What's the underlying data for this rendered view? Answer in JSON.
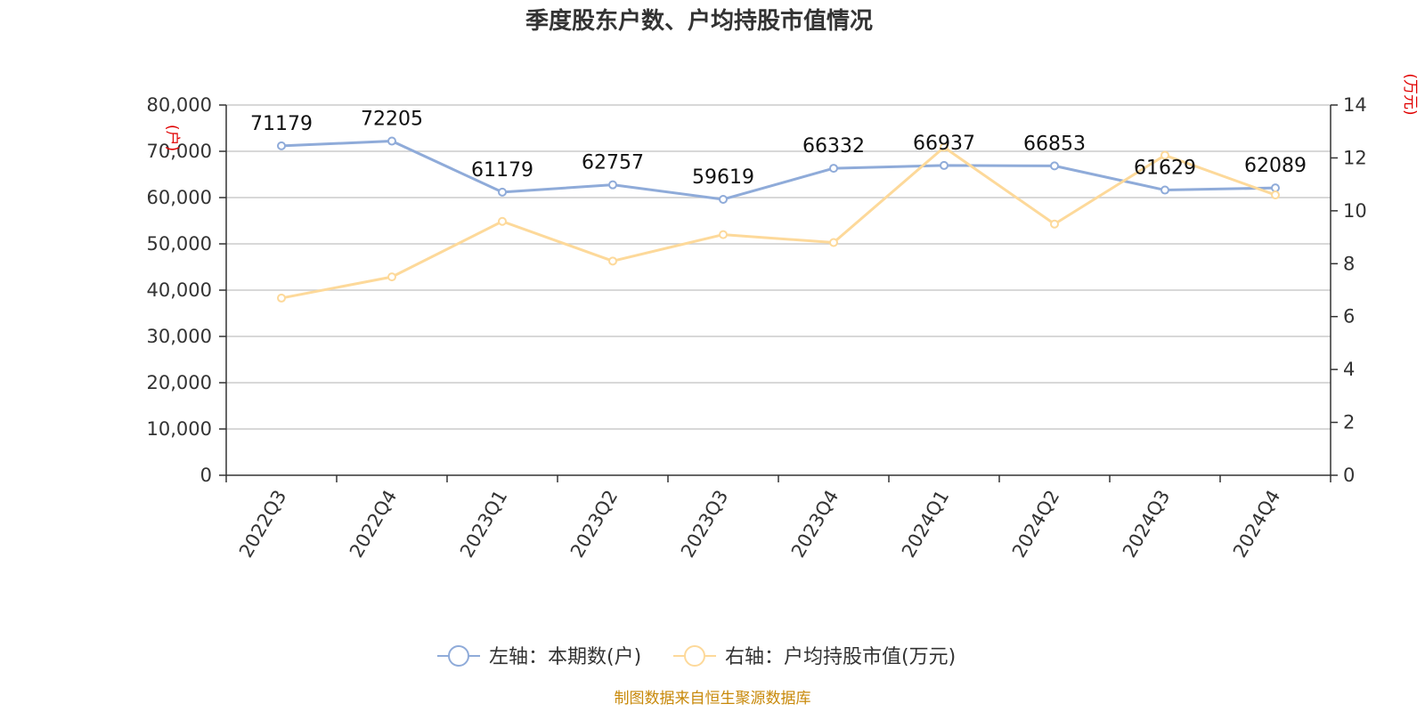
{
  "chart_data": {
    "type": "line",
    "title": "季度股东户数、户均持股市值情况",
    "categories": [
      "2022Q3",
      "2022Q4",
      "2023Q1",
      "2023Q2",
      "2023Q3",
      "2023Q4",
      "2024Q1",
      "2024Q2",
      "2024Q3",
      "2024Q4"
    ],
    "series": [
      {
        "name": "左轴：本期数(户)",
        "axis": "left",
        "color": "#8fabd9",
        "values": [
          71179,
          72205,
          61179,
          62757,
          59619,
          66332,
          66937,
          66853,
          61629,
          62089
        ],
        "data_labels": [
          "71179",
          "72205",
          "61179",
          "62757",
          "59619",
          "66332",
          "66937",
          "66853",
          "61629",
          "62089"
        ]
      },
      {
        "name": "右轴：户均持股市值(万元)",
        "axis": "right",
        "color": "#fdd99a",
        "values": [
          6.7,
          7.5,
          9.6,
          8.1,
          9.1,
          8.8,
          12.4,
          9.5,
          12.1,
          10.6
        ]
      }
    ],
    "y_left": {
      "min": 0,
      "max": 80000,
      "ticks": [
        "0",
        "10,000",
        "20,000",
        "30,000",
        "40,000",
        "50,000",
        "60,000",
        "70,000",
        "80,000"
      ],
      "unit": "(户)"
    },
    "y_right": {
      "min": 0,
      "max": 14,
      "ticks": [
        "0",
        "2",
        "4",
        "6",
        "8",
        "10",
        "12",
        "14"
      ],
      "unit": "(万元)"
    },
    "grid": true,
    "legend_position": "bottom"
  },
  "source_text": "制图数据来自恒生聚源数据库"
}
